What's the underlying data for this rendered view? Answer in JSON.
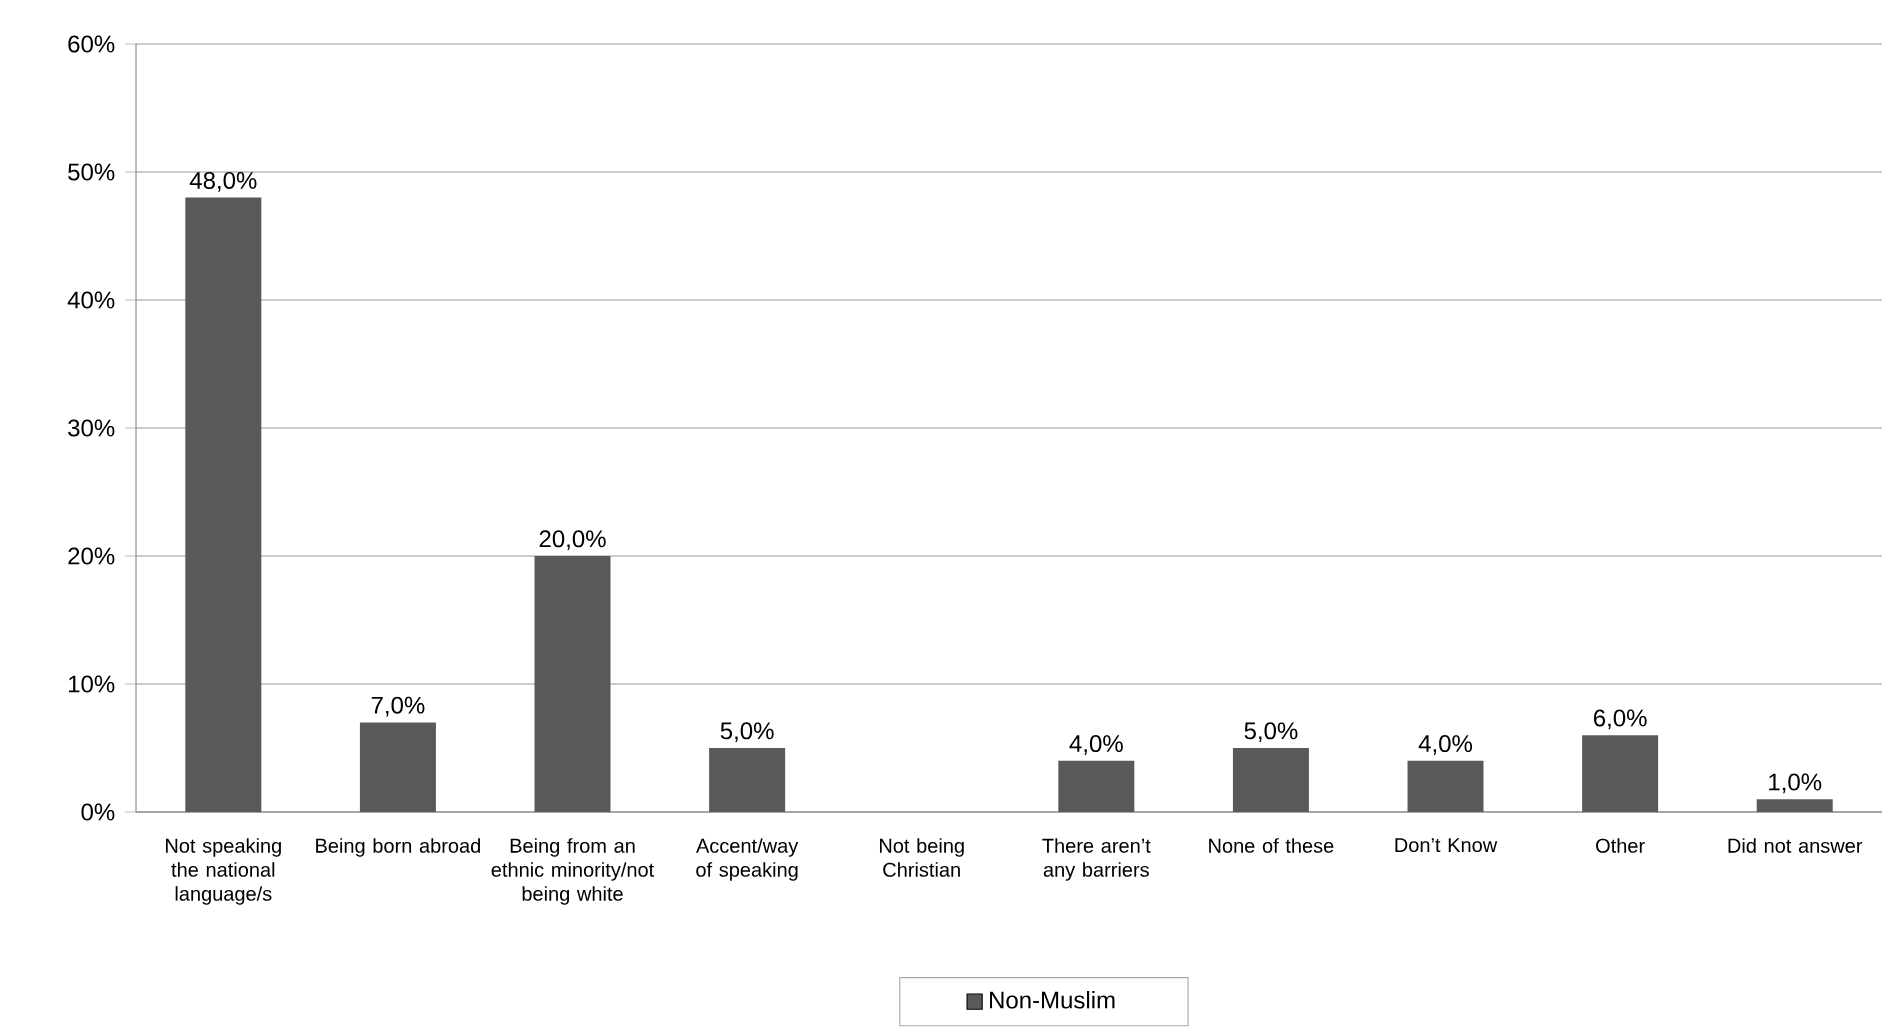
{
  "chart_data": {
    "type": "bar",
    "categories": [
      "Not speaking the national language/s",
      "Being born abroad",
      "Being from an ethnic minority/not being white",
      "Accent/way of speaking",
      "Not being Christian",
      "There aren’t any barriers",
      "None of these",
      "Don’t Know",
      "Other",
      "Did not answer"
    ],
    "series": [
      {
        "name": "Non-Muslim",
        "color": "#595959",
        "values": [
          48,
          7,
          20,
          5,
          null,
          4,
          5,
          4,
          6,
          1
        ],
        "value_labels": [
          "48,0%",
          "7,0%",
          "20,0%",
          "5,0%",
          null,
          "4,0%",
          "5,0%",
          "4,0%",
          "6,0%",
          "1,0%"
        ]
      }
    ],
    "ylim": [
      0,
      60
    ],
    "yticks": [
      {
        "value": 0,
        "label": "0%"
      },
      {
        "value": 10,
        "label": "10%"
      },
      {
        "value": 20,
        "label": "20%"
      },
      {
        "value": 30,
        "label": "30%"
      },
      {
        "value": 40,
        "label": "40%"
      },
      {
        "value": 50,
        "label": "50%"
      },
      {
        "value": 60,
        "label": "60%"
      }
    ],
    "grid": "y",
    "legend": "bottom"
  }
}
